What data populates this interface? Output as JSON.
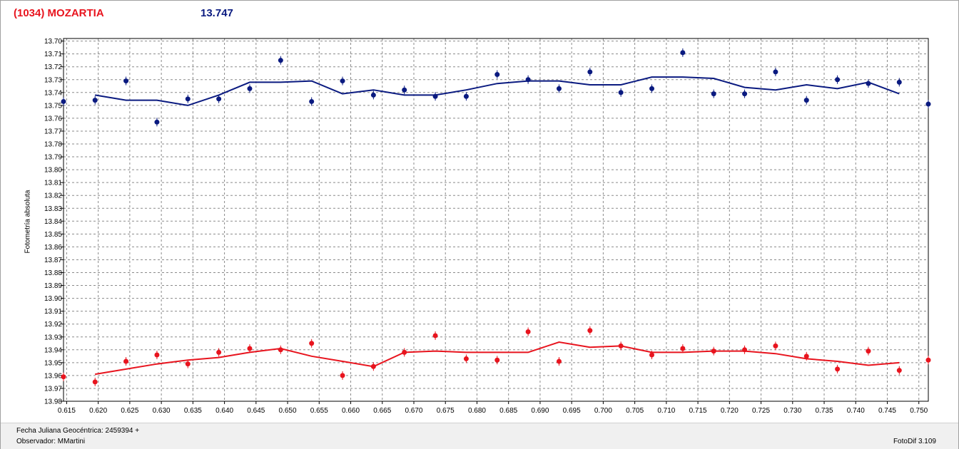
{
  "header": {
    "title": "(1034) MOZARTIA",
    "mean_value": "13.747"
  },
  "footer": {
    "date_label": "Fecha Juliana Geocéntrica: 2459394 +",
    "observer": "Observador: MMartini",
    "software": "FotoDif 3.109"
  },
  "chart_data": {
    "type": "scatter",
    "title": "(1034) MOZARTIA",
    "xlabel": "Fecha Juliana Geocéntrica: 2459394 +",
    "ylabel": "Fotometría absoluta",
    "xlim": [
      0.6145,
      0.7515
    ],
    "ylim": [
      13.698,
      13.98
    ],
    "y_inverted": true,
    "grid": true,
    "legend": "none",
    "x_ticks": [
      "0.615",
      "0.620",
      "0.625",
      "0.630",
      "0.635",
      "0.640",
      "0.645",
      "0.650",
      "0.655",
      "0.660",
      "0.665",
      "0.670",
      "0.675",
      "0.680",
      "0.685",
      "0.690",
      "0.695",
      "0.700",
      "0.705",
      "0.710",
      "0.715",
      "0.720",
      "0.725",
      "0.730",
      "0.735",
      "0.740",
      "0.745",
      "0.750"
    ],
    "y_ticks": [
      "13.70",
      "13.71",
      "13.72",
      "13.73",
      "13.74",
      "13.75",
      "13.76",
      "13.77",
      "13.78",
      "13.79",
      "13.80",
      "13.81",
      "13.82",
      "13.83",
      "13.84",
      "13.85",
      "13.86",
      "13.87",
      "13.88",
      "13.89",
      "13.90",
      "13.91",
      "13.92",
      "13.93",
      "13.94",
      "13.95",
      "13.96",
      "13.97",
      "13.98"
    ],
    "series": [
      {
        "color": "#0a1a80",
        "x": [
          0.6145,
          0.6195,
          0.6244,
          0.6293,
          0.6342,
          0.6391,
          0.644,
          0.6489,
          0.6538,
          0.6587,
          0.6636,
          0.6685,
          0.6734,
          0.6783,
          0.6832,
          0.6881,
          0.693,
          0.6979,
          0.7028,
          0.7077,
          0.7126,
          0.7175,
          0.7224,
          0.7273,
          0.7322,
          0.7371,
          0.742,
          0.7469,
          0.7515
        ],
        "y": [
          13.747,
          13.746,
          13.731,
          13.763,
          13.745,
          13.745,
          13.737,
          13.715,
          13.747,
          13.731,
          13.742,
          13.738,
          13.743,
          13.743,
          13.726,
          13.73,
          13.737,
          13.724,
          13.74,
          13.737,
          13.709,
          13.741,
          13.741,
          13.724,
          13.746,
          13.73,
          13.733,
          13.732,
          13.749
        ],
        "fit_x": [
          0.6195,
          0.6244,
          0.6293,
          0.6342,
          0.6391,
          0.644,
          0.6489,
          0.6538,
          0.6587,
          0.6636,
          0.6685,
          0.6734,
          0.6783,
          0.6832,
          0.6881,
          0.693,
          0.6979,
          0.7028,
          0.7077,
          0.7126,
          0.7175,
          0.7224,
          0.7273,
          0.7322,
          0.7371,
          0.742,
          0.7469
        ],
        "fit_y": [
          13.742,
          13.746,
          13.746,
          13.75,
          13.742,
          13.732,
          13.732,
          13.731,
          13.741,
          13.738,
          13.742,
          13.742,
          13.738,
          13.733,
          13.731,
          13.731,
          13.734,
          13.734,
          13.728,
          13.728,
          13.729,
          13.736,
          13.738,
          13.734,
          13.737,
          13.732,
          13.741
        ]
      },
      {
        "color": "#e8141e",
        "x": [
          0.6145,
          0.6195,
          0.6244,
          0.6293,
          0.6342,
          0.6391,
          0.644,
          0.6489,
          0.6538,
          0.6587,
          0.6636,
          0.6685,
          0.6734,
          0.6783,
          0.6832,
          0.6881,
          0.693,
          0.6979,
          0.7028,
          0.7077,
          0.7126,
          0.7175,
          0.7224,
          0.7273,
          0.7322,
          0.7371,
          0.742,
          0.7469,
          0.7515
        ],
        "y": [
          13.961,
          13.965,
          13.949,
          13.944,
          13.951,
          13.942,
          13.939,
          13.94,
          13.935,
          13.96,
          13.953,
          13.942,
          13.929,
          13.947,
          13.948,
          13.926,
          13.949,
          13.925,
          13.937,
          13.944,
          13.939,
          13.941,
          13.94,
          13.937,
          13.945,
          13.955,
          13.941,
          13.956,
          13.948
        ],
        "fit_x": [
          0.6195,
          0.6244,
          0.6293,
          0.6342,
          0.6391,
          0.644,
          0.6489,
          0.6538,
          0.6587,
          0.6636,
          0.6685,
          0.6734,
          0.6783,
          0.6832,
          0.6881,
          0.693,
          0.6979,
          0.7028,
          0.7077,
          0.7126,
          0.7175,
          0.7224,
          0.7273,
          0.7322,
          0.7371,
          0.742,
          0.7469
        ],
        "fit_y": [
          13.959,
          13.955,
          13.951,
          13.948,
          13.946,
          13.942,
          13.939,
          13.945,
          13.949,
          13.953,
          13.942,
          13.941,
          13.942,
          13.942,
          13.942,
          13.934,
          13.938,
          13.937,
          13.942,
          13.942,
          13.941,
          13.941,
          13.943,
          13.947,
          13.949,
          13.952,
          13.95
        ]
      }
    ]
  }
}
